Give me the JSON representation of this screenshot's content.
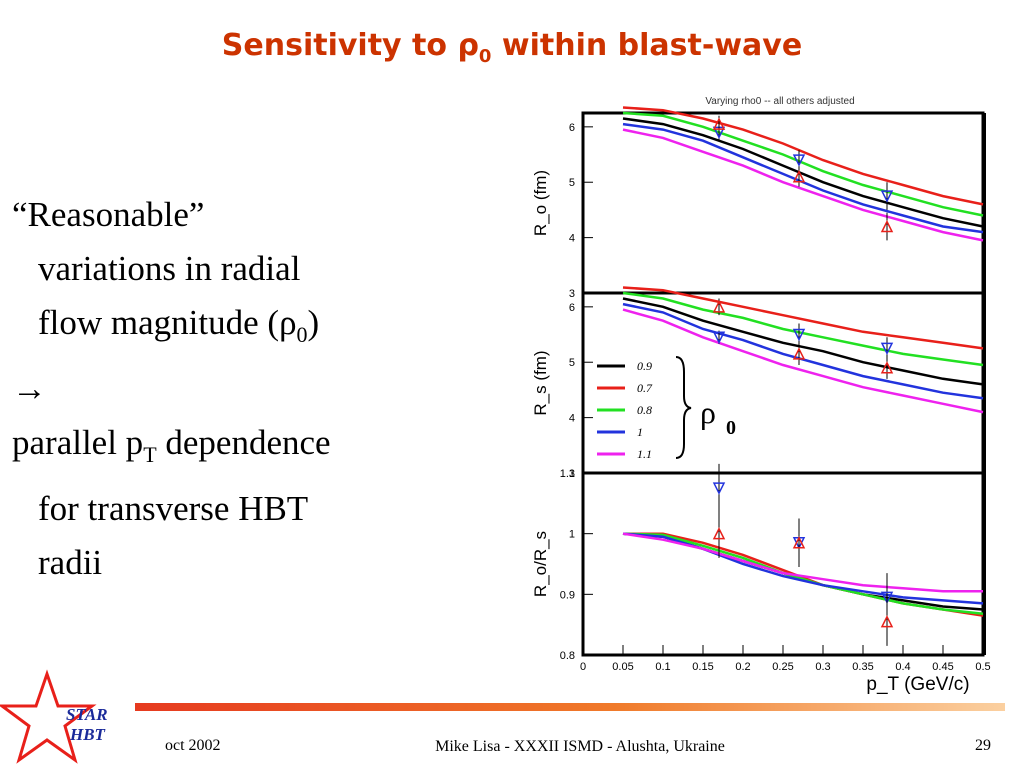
{
  "title": {
    "main": "Sensitivity to ",
    "rho": "ρ",
    "sub": "0",
    "tail": " within blast-wave"
  },
  "bullet": {
    "line1": "“Reasonable”",
    "line2": "variations in radial",
    "line3_a": "flow magnitude (",
    "line3_rho": "ρ",
    "line3_sub": "0",
    "line3_b": ")",
    "arrow": "→",
    "line5_a": "parallel p",
    "line5_sub": "T",
    "line5_b": " dependence",
    "line6": "for transverse HBT",
    "line7": "radii"
  },
  "brace_label": {
    "rho": "ρ",
    "sub": "0"
  },
  "footer": {
    "date": "oct 2002",
    "center": "Mike Lisa - XXXII ISMD - Alushta, Ukraine",
    "page": "29",
    "logo_line1": "STAR",
    "logo_line2": "HBT"
  },
  "colors": {
    "title": "#cc3300",
    "rho_0.9": "#000000",
    "rho_0.7": "#e8201a",
    "rho_0.8": "#22e022",
    "rho_1": "#2233dd",
    "rho_1.1": "#ee22ee",
    "star": "#e8201a"
  },
  "chart_data": {
    "type": "line",
    "subtitle": "Varying rho0 -- all others adjusted",
    "xlabel": "p_T (GeV/c)",
    "xlim": [
      0,
      0.5
    ],
    "xticks": [
      "0",
      "0.05",
      "0.1",
      "0.15",
      "0.2",
      "0.25",
      "0.3",
      "0.35",
      "0.4",
      "0.45",
      "0.5"
    ],
    "legend_title": "ρ0",
    "legend_placement": "center-left of middle panel",
    "x": [
      0.05,
      0.1,
      0.15,
      0.2,
      0.25,
      0.3,
      0.35,
      0.4,
      0.45,
      0.5
    ],
    "panels": [
      {
        "ylabel": "R_o (fm)",
        "ylim": [
          3,
          6.25
        ],
        "yticks": [
          "3",
          "4",
          "5",
          "6"
        ],
        "series": [
          {
            "name": "0.9",
            "values": [
              6.15,
              6.05,
              5.85,
              5.6,
              5.3,
              5.0,
              4.75,
              4.55,
              4.35,
              4.2
            ]
          },
          {
            "name": "0.7",
            "values": [
              6.35,
              6.3,
              6.15,
              5.95,
              5.7,
              5.4,
              5.15,
              4.95,
              4.75,
              4.6
            ]
          },
          {
            "name": "0.8",
            "values": [
              6.25,
              6.2,
              6.0,
              5.75,
              5.5,
              5.2,
              4.95,
              4.75,
              4.55,
              4.4
            ]
          },
          {
            "name": "1",
            "values": [
              6.05,
              5.95,
              5.75,
              5.45,
              5.15,
              4.85,
              4.6,
              4.4,
              4.2,
              4.1
            ]
          },
          {
            "name": "1.1",
            "values": [
              5.95,
              5.8,
              5.55,
              5.3,
              5.0,
              4.75,
              4.5,
              4.3,
              4.1,
              3.95
            ]
          }
        ],
        "points": [
          {
            "x": 0.17,
            "y": 5.9,
            "err": 0.15,
            "marker": "down",
            "color": "#2233dd"
          },
          {
            "x": 0.17,
            "y": 6.05,
            "err": 0.15,
            "marker": "up",
            "color": "#e8201a"
          },
          {
            "x": 0.27,
            "y": 5.4,
            "err": 0.18,
            "marker": "down",
            "color": "#2233dd"
          },
          {
            "x": 0.27,
            "y": 5.1,
            "err": 0.18,
            "marker": "up",
            "color": "#e8201a"
          },
          {
            "x": 0.38,
            "y": 4.75,
            "err": 0.25,
            "marker": "down",
            "color": "#2233dd"
          },
          {
            "x": 0.38,
            "y": 4.2,
            "err": 0.25,
            "marker": "up",
            "color": "#e8201a"
          }
        ]
      },
      {
        "ylabel": "R_s (fm)",
        "ylim": [
          3,
          6.25
        ],
        "yticks": [
          "3",
          "4",
          "5",
          "6"
        ],
        "series": [
          {
            "name": "0.9",
            "values": [
              6.15,
              6.0,
              5.75,
              5.55,
              5.35,
              5.2,
              5.0,
              4.85,
              4.7,
              4.6
            ]
          },
          {
            "name": "0.7",
            "values": [
              6.35,
              6.3,
              6.15,
              6.0,
              5.85,
              5.7,
              5.55,
              5.45,
              5.35,
              5.25
            ]
          },
          {
            "name": "0.8",
            "values": [
              6.25,
              6.15,
              5.95,
              5.8,
              5.6,
              5.45,
              5.3,
              5.15,
              5.05,
              4.95
            ]
          },
          {
            "name": "1",
            "values": [
              6.05,
              5.9,
              5.6,
              5.4,
              5.15,
              4.95,
              4.75,
              4.6,
              4.45,
              4.35
            ]
          },
          {
            "name": "1.1",
            "values": [
              5.95,
              5.75,
              5.45,
              5.2,
              4.95,
              4.75,
              4.55,
              4.4,
              4.25,
              4.1
            ]
          }
        ],
        "points": [
          {
            "x": 0.17,
            "y": 6.0,
            "err": 0.15,
            "marker": "up",
            "color": "#e8201a"
          },
          {
            "x": 0.17,
            "y": 5.45,
            "err": 0.12,
            "marker": "down",
            "color": "#2233dd"
          },
          {
            "x": 0.27,
            "y": 5.5,
            "err": 0.2,
            "marker": "down",
            "color": "#2233dd"
          },
          {
            "x": 0.27,
            "y": 5.15,
            "err": 0.2,
            "marker": "up",
            "color": "#e8201a"
          },
          {
            "x": 0.38,
            "y": 5.25,
            "err": 0.2,
            "marker": "down",
            "color": "#2233dd"
          },
          {
            "x": 0.38,
            "y": 4.9,
            "err": 0.2,
            "marker": "up",
            "color": "#e8201a"
          }
        ]
      },
      {
        "ylabel": "R_o/R_s",
        "ylim": [
          0.8,
          1.1
        ],
        "yticks": [
          "0.8",
          "0.9",
          "1",
          "1.1"
        ],
        "series": [
          {
            "name": "0.9",
            "values": [
              1.0,
              0.995,
              0.975,
              0.955,
              0.935,
              0.915,
              0.9,
              0.89,
              0.88,
              0.875
            ]
          },
          {
            "name": "0.7",
            "values": [
              1.0,
              1.0,
              0.985,
              0.965,
              0.94,
              0.915,
              0.9,
              0.885,
              0.875,
              0.865
            ]
          },
          {
            "name": "0.8",
            "values": [
              1.0,
              0.998,
              0.98,
              0.96,
              0.935,
              0.915,
              0.9,
              0.885,
              0.875,
              0.868
            ]
          },
          {
            "name": "1",
            "values": [
              1.0,
              0.995,
              0.975,
              0.95,
              0.93,
              0.915,
              0.905,
              0.895,
              0.89,
              0.885
            ]
          },
          {
            "name": "1.1",
            "values": [
              1.0,
              0.99,
              0.975,
              0.955,
              0.935,
              0.925,
              0.915,
              0.91,
              0.905,
              0.905
            ]
          }
        ],
        "points": [
          {
            "x": 0.17,
            "y": 1.075,
            "err": 0.04,
            "marker": "down",
            "color": "#2233dd"
          },
          {
            "x": 0.17,
            "y": 1.0,
            "err": 0.04,
            "marker": "up",
            "color": "#e8201a"
          },
          {
            "x": 0.27,
            "y": 0.985,
            "err": 0.04,
            "marker": "down",
            "color": "#2233dd"
          },
          {
            "x": 0.27,
            "y": 0.985,
            "err": 0.04,
            "marker": "up",
            "color": "#e8201a"
          },
          {
            "x": 0.38,
            "y": 0.895,
            "err": 0.04,
            "marker": "down",
            "color": "#2233dd"
          },
          {
            "x": 0.38,
            "y": 0.855,
            "err": 0.04,
            "marker": "up",
            "color": "#e8201a"
          }
        ]
      }
    ]
  }
}
